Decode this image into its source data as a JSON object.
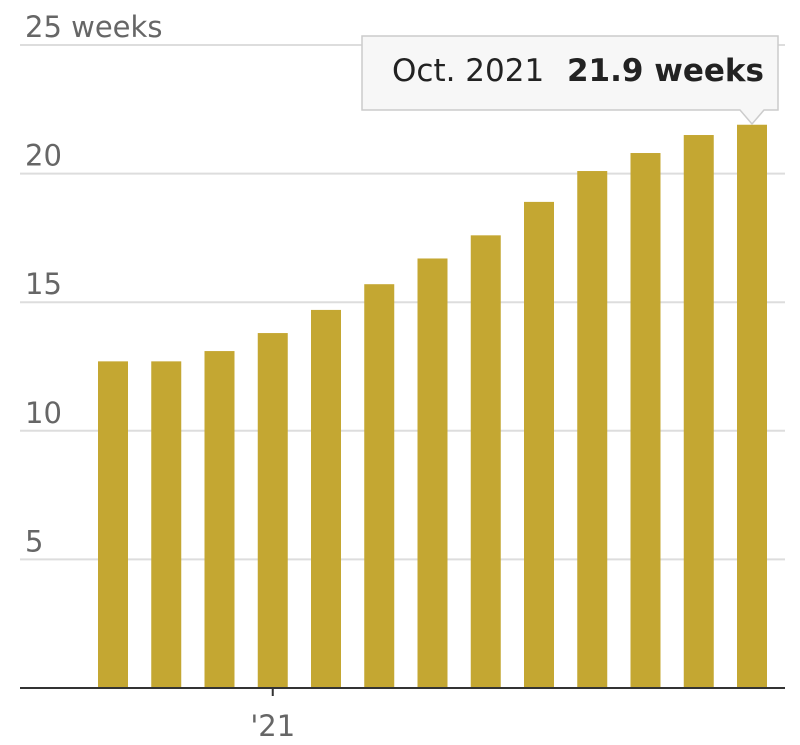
{
  "chart_data": {
    "type": "bar",
    "categories": [
      null,
      null,
      null,
      "'21",
      null,
      null,
      null,
      null,
      null,
      null,
      null,
      null,
      null
    ],
    "values": [
      12.7,
      12.7,
      13.1,
      13.8,
      14.7,
      15.7,
      16.7,
      17.6,
      18.9,
      20.1,
      20.8,
      21.5,
      21.9
    ],
    "color": "#c4a732",
    "ylim": [
      0,
      25
    ],
    "yticks": [
      5,
      10,
      15,
      20,
      {
        "value": 25,
        "label": "25 weeks"
      }
    ],
    "grid": true,
    "tooltip": {
      "category": "Oct. 2021",
      "text": "21.9 weeks"
    }
  }
}
